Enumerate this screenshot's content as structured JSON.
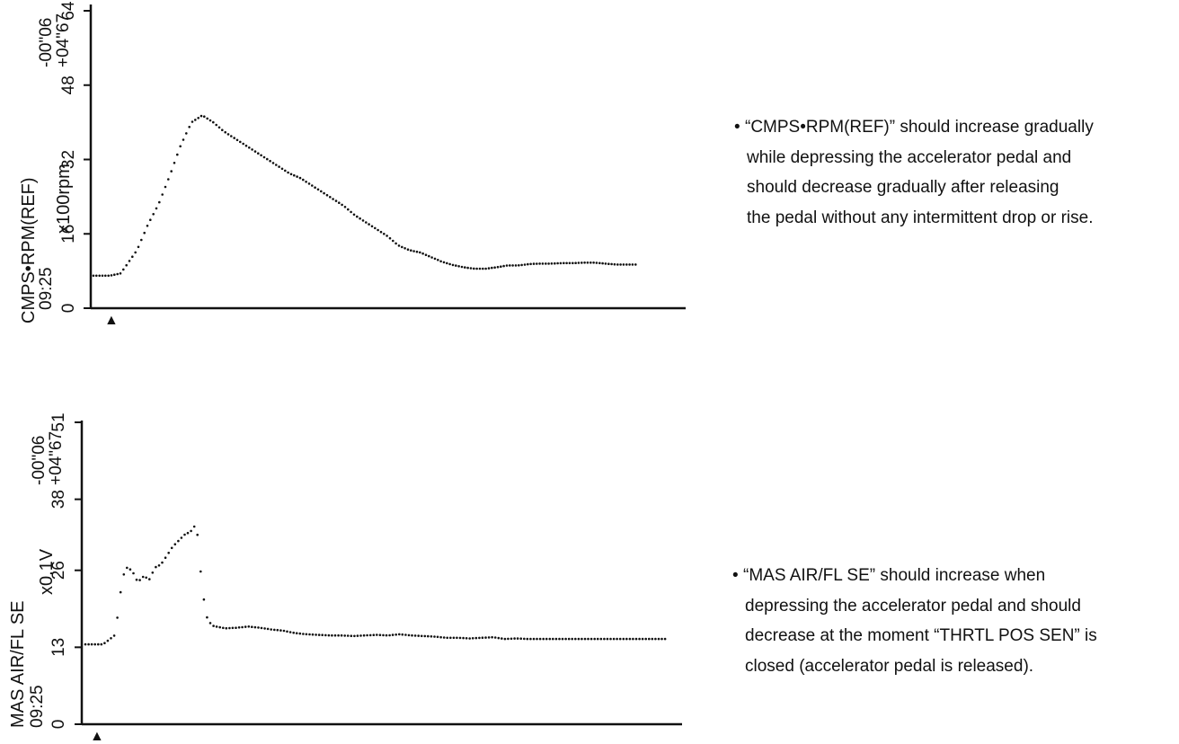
{
  "chart_data": [
    {
      "type": "line",
      "title": "",
      "ylabel": "CMPS•RPM(REF)",
      "yunit": "x100rpm",
      "ylim": [
        0,
        64
      ],
      "yticks": [
        "0",
        "16",
        "32",
        "48",
        "64"
      ],
      "time_labels": [
        "09:25",
        "+04\"67",
        "-00\"06"
      ],
      "marker": "▲",
      "series": [
        {
          "x": [
            0,
            3,
            5,
            8,
            10,
            12,
            14,
            16,
            18,
            20,
            22,
            24,
            26,
            28,
            30,
            32,
            34,
            36,
            38,
            40,
            42,
            44,
            46,
            48,
            50,
            52,
            54,
            56,
            58,
            60,
            62,
            64,
            66,
            68,
            70,
            72,
            74,
            76,
            78,
            80,
            82,
            84,
            86,
            88,
            90,
            92,
            94,
            96,
            98,
            100
          ],
          "values": [
            7,
            7,
            7.5,
            12.5,
            18,
            22.5,
            28.5,
            35,
            40,
            41.5,
            40,
            38,
            36.5,
            35,
            33.5,
            32,
            30.5,
            29,
            28,
            26.5,
            25,
            23.5,
            22,
            20,
            18.5,
            17,
            15.5,
            13.5,
            12.5,
            12,
            11,
            10,
            9.3,
            8.8,
            8.5,
            8.5,
            8.8,
            9.2,
            9.2,
            9.5,
            9.6,
            9.6,
            9.7,
            9.7,
            9.8,
            9.8,
            9.6,
            9.4,
            9.4,
            9.4
          ]
        }
      ]
    },
    {
      "type": "line",
      "title": "",
      "ylabel": "MAS AIR/FL SE",
      "yunit": "x0.1V",
      "ylim": [
        0,
        51
      ],
      "yticks": [
        "0",
        "13",
        "26",
        "38",
        "51"
      ],
      "time_labels": [
        "09:25",
        "+04\"67",
        "-00\"06"
      ],
      "marker": "▲",
      "series": [
        {
          "x": [
            0,
            3,
            4,
            5,
            5.5,
            6,
            6.5,
            7,
            8,
            9,
            10,
            11,
            12,
            13,
            14,
            15,
            16,
            17,
            18,
            18.5,
            19,
            19.5,
            20,
            21,
            22,
            24,
            26,
            28,
            30,
            32,
            34,
            36,
            38,
            40,
            42,
            44,
            46,
            48,
            50,
            52,
            54,
            56,
            58,
            60,
            62,
            64,
            66,
            68,
            70,
            72,
            74,
            76,
            78,
            80,
            82,
            84,
            86,
            88,
            90,
            92,
            94,
            96,
            98,
            100
          ],
          "values": [
            13.5,
            13.5,
            14.2,
            15,
            18,
            22,
            25,
            26.5,
            26,
            24,
            25,
            24.5,
            26.5,
            27,
            28.5,
            30,
            31,
            32,
            32.5,
            33,
            34,
            30,
            23,
            17.5,
            16.6,
            16.2,
            16.3,
            16.5,
            16.3,
            16,
            15.8,
            15.4,
            15.2,
            15.1,
            15,
            15,
            14.9,
            15,
            15.1,
            15,
            15.2,
            15,
            14.9,
            14.8,
            14.6,
            14.6,
            14.5,
            14.6,
            14.7,
            14.4,
            14.5,
            14.4,
            14.4,
            14.4,
            14.4,
            14.4,
            14.4,
            14.4,
            14.4,
            14.4,
            14.4,
            14.4,
            14.4,
            14.4
          ]
        }
      ]
    }
  ],
  "notes": [
    {
      "bullet": "•",
      "lines": [
        "“CMPS•RPM(REF)” should increase gradually",
        "while depressing the accelerator pedal and",
        "should decrease gradually after releasing",
        "the pedal without any intermittent drop or rise."
      ]
    },
    {
      "bullet": "•",
      "lines": [
        "“MAS AIR/FL SE” should increase when",
        "depressing the accelerator pedal and should",
        "decrease at the moment “THRTL POS SEN” is",
        "closed (accelerator pedal is released)."
      ]
    }
  ]
}
